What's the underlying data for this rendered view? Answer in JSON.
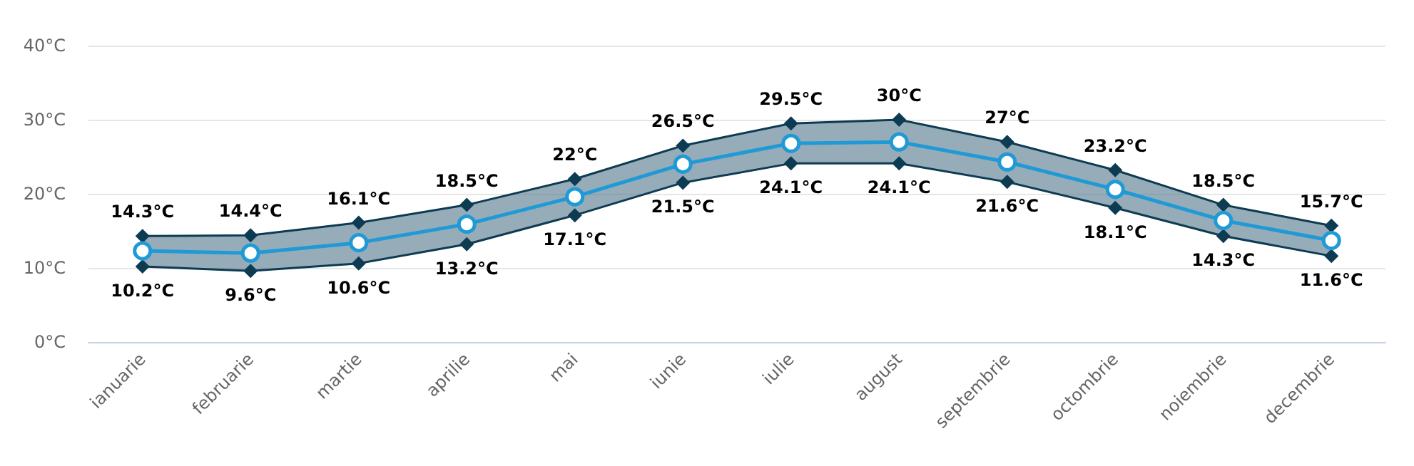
{
  "chart_data": {
    "type": "line",
    "categories": [
      "ianuarie",
      "februarie",
      "martie",
      "aprilie",
      "mai",
      "iunie",
      "iulie",
      "august",
      "septembrie",
      "octombrie",
      "noiembrie",
      "decembrie"
    ],
    "series": [
      {
        "color": "#1f9ad6",
        "marker": "circle",
        "values": [
          12.3,
          12.0,
          13.4,
          15.9,
          19.6,
          24.0,
          26.8,
          27.0,
          24.3,
          20.6,
          16.4,
          13.7
        ],
        "lower": [
          10.2,
          9.6,
          10.6,
          13.2,
          17.1,
          21.5,
          24.1,
          24.1,
          21.6,
          18.1,
          14.3,
          11.6
        ],
        "upper": [
          14.3,
          14.4,
          16.1,
          18.5,
          22,
          26.5,
          29.5,
          30,
          27,
          23.2,
          18.5,
          15.7
        ]
      },
      {
        "color": "#0d3b52",
        "marker": "diamond",
        "values": [
          14.3,
          14.4,
          16.1,
          18.5,
          22,
          26.5,
          29.5,
          30,
          27,
          23.2,
          18.5,
          15.7
        ],
        "value_labels": [
          "14.3°C",
          "14.4°C",
          "16.1°C",
          "18.5°C",
          "22°C",
          "26.5°C",
          "29.5°C",
          "30°C",
          "27°C",
          "23.2°C",
          "18.5°C",
          "15.7°C"
        ]
      },
      {
        "color": "#0d3b52",
        "marker": "diamond",
        "values": [
          10.2,
          9.6,
          10.6,
          13.2,
          17.1,
          21.5,
          24.1,
          24.1,
          21.6,
          18.1,
          14.3,
          11.6
        ],
        "value_labels": [
          "10.2°C",
          "9.6°C",
          "10.6°C",
          "13.2°C",
          "17.1°C",
          "21.5°C",
          "24.1°C",
          "24.1°C",
          "21.6°C",
          "18.1°C",
          "14.3°C",
          "11.6°C"
        ]
      }
    ],
    "ylim": [
      0,
      40
    ],
    "yticks": [
      {
        "value": 0,
        "label": "0°C"
      },
      {
        "value": 10,
        "label": "10°C"
      },
      {
        "value": 20,
        "label": "20°C"
      },
      {
        "value": 30,
        "label": "30°C"
      },
      {
        "value": 40,
        "label": "40°C"
      }
    ],
    "grid": "y"
  }
}
